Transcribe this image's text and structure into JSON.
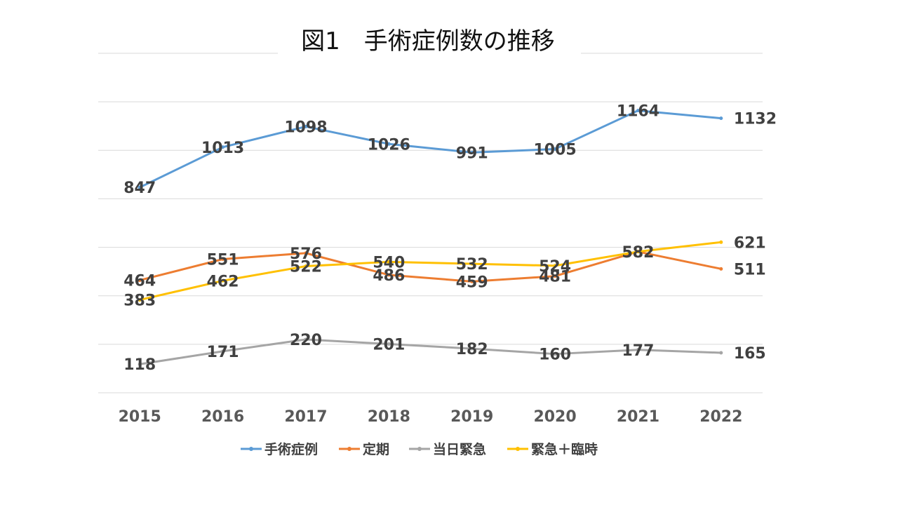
{
  "chart_data": {
    "type": "line",
    "title": "図1　手術症例数の推移",
    "xlabel": "",
    "ylabel": "",
    "ylim": [
      0,
      1400
    ],
    "grid": true,
    "legend_position": "bottom",
    "categories": [
      "2015",
      "2016",
      "2017",
      "2018",
      "2019",
      "2020",
      "2021",
      "2022"
    ],
    "series": [
      {
        "name": "手術症例",
        "color": "#5B9BD5",
        "values": [
          847,
          1013,
          1098,
          1026,
          991,
          1005,
          1164,
          1132
        ]
      },
      {
        "name": "定期",
        "color": "#ED7D31",
        "values": [
          464,
          551,
          576,
          486,
          459,
          481,
          582,
          511
        ]
      },
      {
        "name": "当日緊急",
        "color": "#A5A5A5",
        "values": [
          118,
          171,
          220,
          201,
          182,
          160,
          177,
          165
        ]
      },
      {
        "name": "緊急＋臨時",
        "color": "#FFC000",
        "values": [
          383,
          462,
          522,
          540,
          532,
          524,
          582,
          621
        ]
      }
    ]
  }
}
